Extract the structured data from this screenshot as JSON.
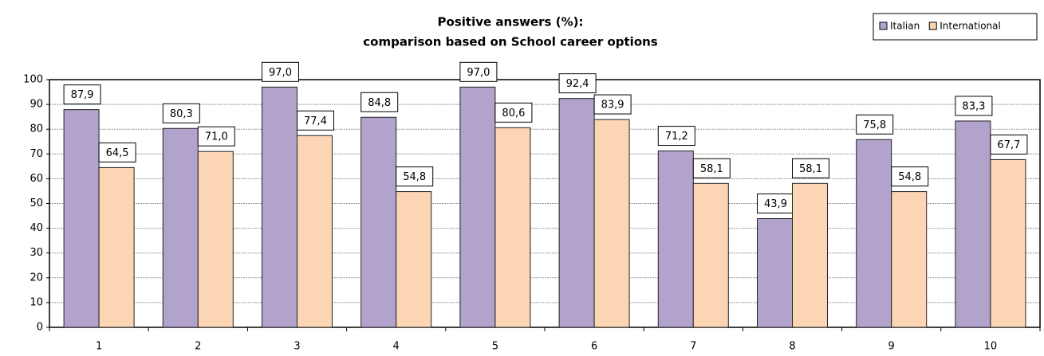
{
  "chart_data": {
    "type": "bar",
    "title": [
      "Positive answers (%):",
      "comparison based on School career options"
    ],
    "categories": [
      "1",
      "2",
      "3",
      "4",
      "5",
      "6",
      "7",
      "8",
      "9",
      "10"
    ],
    "series": [
      {
        "name": "Italian",
        "color": "#b1a3cb",
        "values": [
          87.9,
          80.3,
          97.0,
          84.8,
          97.0,
          92.4,
          71.2,
          43.9,
          75.8,
          83.3
        ],
        "value_labels": [
          "87,9",
          "80,3",
          "97,0",
          "84,8",
          "97,0",
          "92,4",
          "71,2",
          "43,9",
          "75,8",
          "83,3"
        ]
      },
      {
        "name": "International",
        "color": "#fcd5b5",
        "values": [
          64.5,
          71.0,
          77.4,
          54.8,
          80.6,
          83.9,
          58.1,
          58.1,
          54.8,
          67.7
        ],
        "value_labels": [
          "64,5",
          "71,0",
          "77,4",
          "54,8",
          "80,6",
          "83,9",
          "58,1",
          "58,1",
          "54,8",
          "67,7"
        ]
      }
    ],
    "ylim": [
      0,
      100
    ],
    "yticks": [
      0,
      10,
      20,
      30,
      40,
      50,
      60,
      70,
      80,
      90,
      100
    ],
    "grid": true,
    "legend": "top-right"
  }
}
